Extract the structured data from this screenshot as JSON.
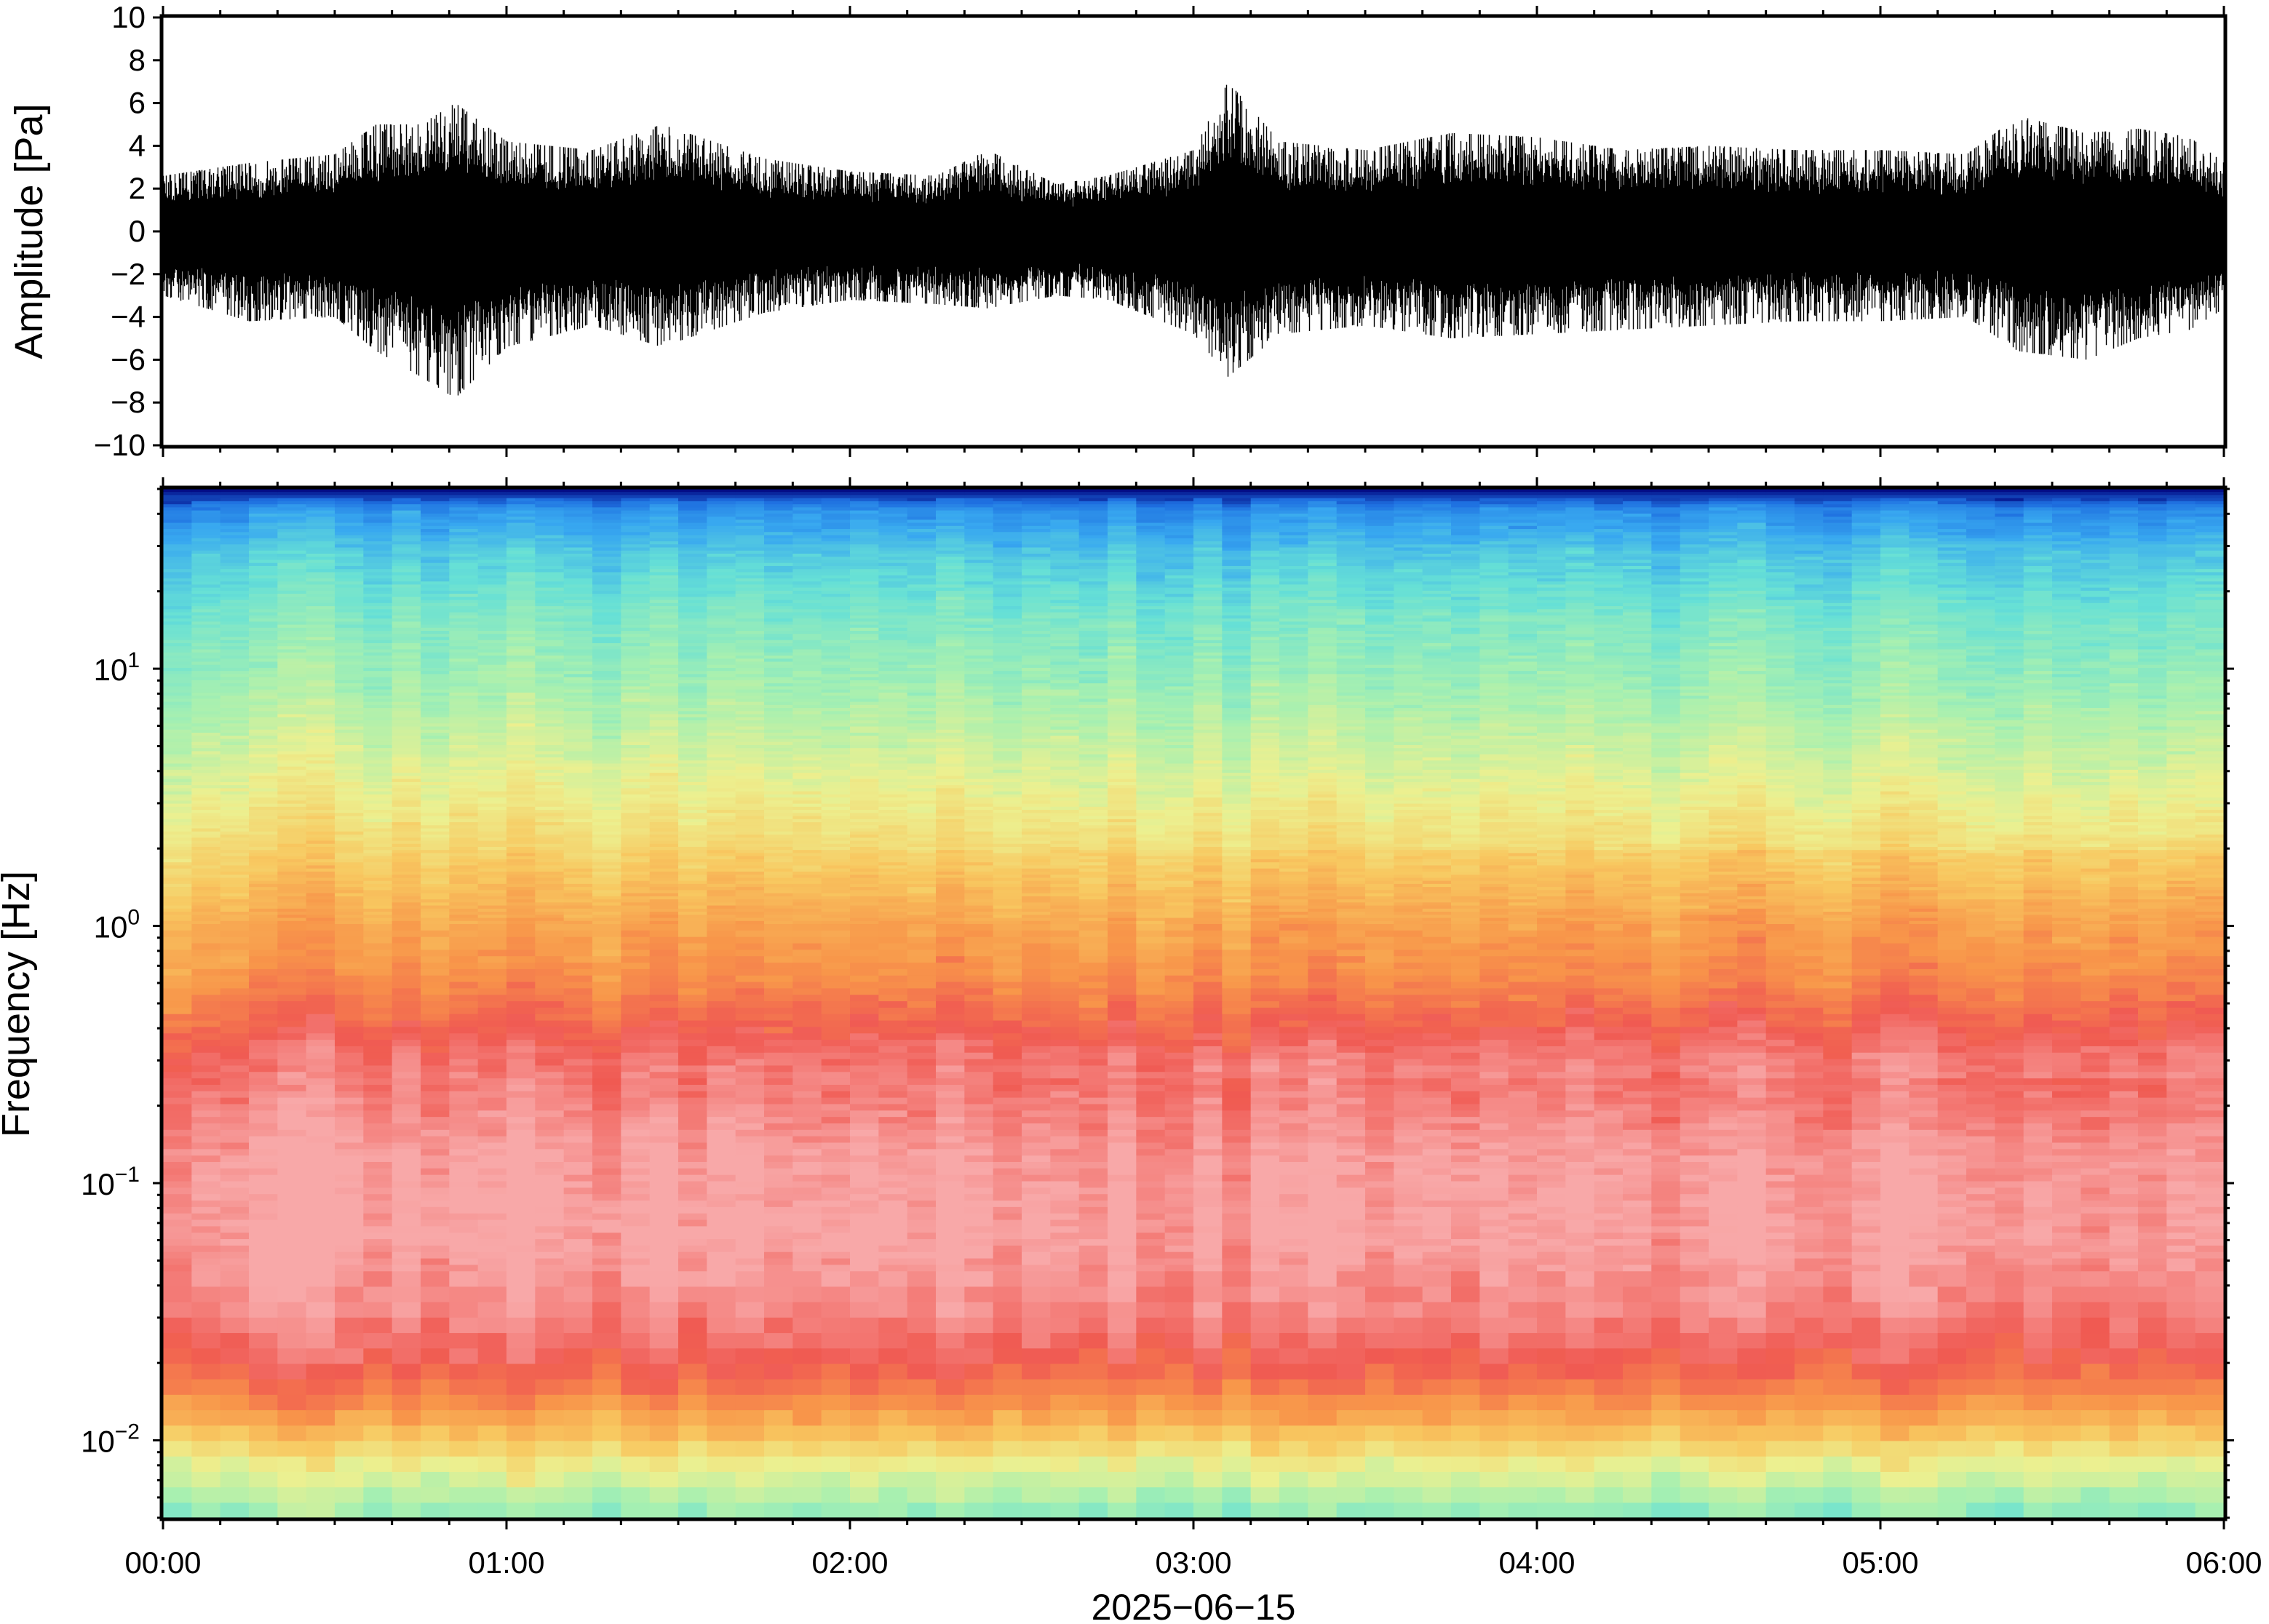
{
  "chart_data": [
    {
      "type": "line",
      "panel": "waveform",
      "ylabel": "Amplitude [Pa]",
      "xlabel": "2025−06−15",
      "ylim": [
        -10,
        10
      ],
      "yticks": [
        {
          "value": 10,
          "label": "10"
        },
        {
          "value": 8,
          "label": "8"
        },
        {
          "value": 6,
          "label": "6"
        },
        {
          "value": 4,
          "label": "4"
        },
        {
          "value": 2,
          "label": "2"
        },
        {
          "value": 0,
          "label": "0"
        },
        {
          "value": -2,
          "label": "−2"
        },
        {
          "value": -4,
          "label": "−4"
        },
        {
          "value": -6,
          "label": "−6"
        },
        {
          "value": -8,
          "label": "−8"
        },
        {
          "value": -10,
          "label": "−10"
        }
      ],
      "xlim_hours": [
        0,
        6
      ],
      "envelope": {
        "x_hours": [
          0.0,
          0.25,
          0.5,
          0.62,
          0.75,
          0.85,
          1.0,
          1.25,
          1.45,
          1.75,
          2.0,
          2.25,
          2.4,
          2.6,
          2.75,
          3.0,
          3.1,
          3.25,
          3.5,
          3.75,
          4.0,
          4.25,
          4.5,
          4.75,
          5.0,
          5.25,
          5.4,
          5.6,
          5.75,
          5.9,
          6.0
        ],
        "max": [
          2.6,
          3.2,
          3.6,
          5.0,
          5.0,
          6.0,
          4.2,
          3.8,
          5.0,
          3.4,
          2.8,
          2.6,
          3.8,
          2.2,
          2.6,
          3.8,
          7.0,
          4.2,
          3.8,
          4.6,
          4.4,
          3.8,
          4.0,
          3.8,
          3.8,
          3.6,
          5.4,
          4.6,
          4.8,
          4.4,
          3.2
        ],
        "min": [
          -3.0,
          -4.2,
          -4.0,
          -5.6,
          -6.8,
          -7.8,
          -5.4,
          -4.4,
          -5.4,
          -3.8,
          -3.2,
          -3.4,
          -3.6,
          -3.0,
          -3.2,
          -4.8,
          -6.8,
          -4.8,
          -4.4,
          -5.0,
          -4.8,
          -4.6,
          -4.4,
          -4.2,
          -4.2,
          -4.0,
          -5.6,
          -6.0,
          -5.0,
          -4.6,
          -3.6
        ]
      }
    },
    {
      "type": "heatmap",
      "panel": "spectrogram",
      "ylabel": "Frequency [Hz]",
      "xlabel": "2025−06−15",
      "yscale": "log",
      "ylim": [
        0.005,
        50
      ],
      "yticks": [
        {
          "value": 10,
          "base": "10",
          "exp": "1"
        },
        {
          "value": 1,
          "base": "10",
          "exp": "0"
        },
        {
          "value": 0.1,
          "base": "10",
          "exp": "−1"
        },
        {
          "value": 0.01,
          "base": "10",
          "exp": "−2"
        }
      ],
      "xlim_hours": [
        0,
        6
      ],
      "xticks": [
        {
          "value": 0,
          "label": "00:00"
        },
        {
          "value": 1,
          "label": "01:00"
        },
        {
          "value": 2,
          "label": "02:00"
        },
        {
          "value": 3,
          "label": "03:00"
        },
        {
          "value": 4,
          "label": "04:00"
        },
        {
          "value": 5,
          "label": "05:00"
        },
        {
          "value": 6,
          "label": "06:00"
        }
      ],
      "colormap": [
        "#00007a",
        "#1e6fe0",
        "#38a8f0",
        "#66e0d6",
        "#a8f0b0",
        "#ecf090",
        "#f8c860",
        "#f8964a",
        "#f05a52",
        "#f8a8a8"
      ],
      "color_by_frequency": {
        "log10_hz": [
          -2.3,
          -2.1,
          -1.9,
          -1.7,
          -1.5,
          -1.2,
          -0.9,
          -0.5,
          -0.2,
          0.0,
          0.3,
          0.6,
          0.9,
          1.2,
          1.45,
          1.62,
          1.7
        ],
        "colormap_index": [
          3.6,
          5.0,
          6.8,
          8.0,
          8.6,
          9.0,
          8.9,
          8.2,
          7.0,
          6.6,
          5.6,
          4.8,
          4.0,
          3.4,
          2.6,
          1.6,
          0.0
        ]
      }
    }
  ]
}
